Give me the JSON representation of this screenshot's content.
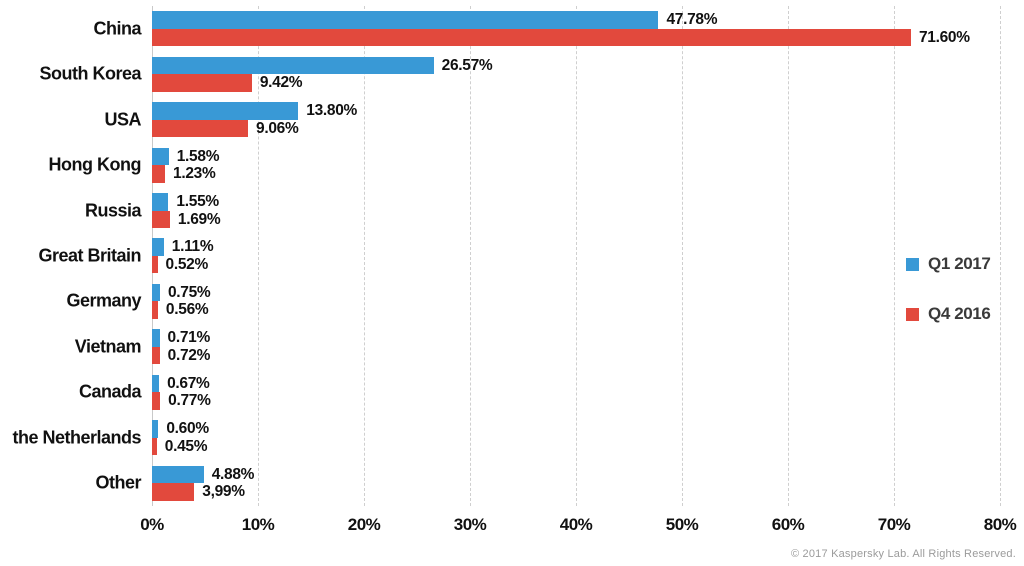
{
  "chart_data": {
    "type": "bar",
    "orientation": "horizontal",
    "title": "",
    "xlabel": "",
    "ylabel": "",
    "xlim": [
      0,
      80
    ],
    "x_ticks": [
      "0%",
      "10%",
      "20%",
      "30%",
      "40%",
      "50%",
      "60%",
      "70%",
      "80%"
    ],
    "x_tick_values": [
      0,
      10,
      20,
      30,
      40,
      50,
      60,
      70,
      80
    ],
    "grid": "vertical-dashed",
    "legend_position": "right",
    "categories": [
      "China",
      "South Korea",
      "USA",
      "Hong Kong",
      "Russia",
      "Great Britain",
      "Germany",
      "Vietnam",
      "Canada",
      "the Netherlands",
      "Other"
    ],
    "series": [
      {
        "name": "Q1 2017",
        "color": "#3999D6",
        "values": [
          47.78,
          26.57,
          13.8,
          1.58,
          1.55,
          1.11,
          0.75,
          0.71,
          0.67,
          0.6,
          4.88
        ],
        "labels": [
          "47.78%",
          "26.57%",
          "13.80%",
          "1.58%",
          "1.55%",
          "1.11%",
          "0.75%",
          "0.71%",
          "0.67%",
          "0.60%",
          "4.88%"
        ]
      },
      {
        "name": "Q4 2016",
        "color": "#E2493D",
        "values": [
          71.6,
          9.42,
          9.06,
          1.23,
          1.69,
          0.52,
          0.56,
          0.72,
          0.77,
          0.45,
          3.99
        ],
        "labels": [
          "71.60%",
          "9.42%",
          "9.06%",
          "1.23%",
          "1.69%",
          "0.52%",
          "0.56%",
          "0.72%",
          "0.77%",
          "0.45%",
          "3,99%"
        ]
      }
    ]
  },
  "footer": {
    "copyright": "© 2017 Kaspersky Lab. All Rights Reserved."
  }
}
